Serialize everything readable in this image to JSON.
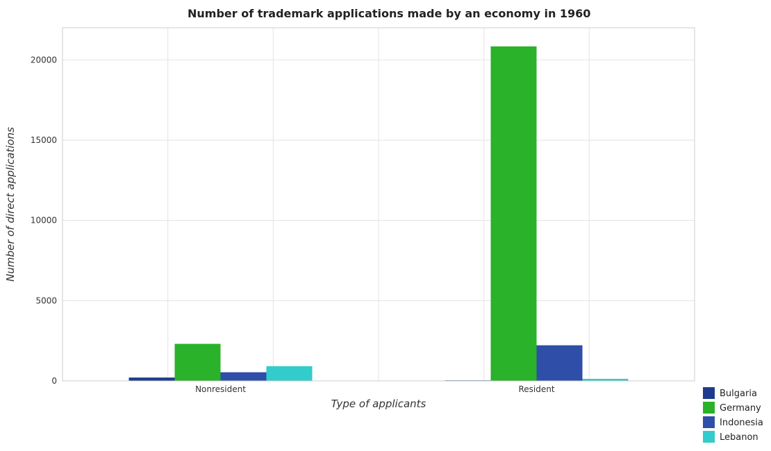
{
  "chart_data": {
    "type": "bar",
    "title": "Number of trademark applications made by an economy in 1960",
    "xlabel": "Type of applicants",
    "ylabel": "Number of direct applications",
    "categories": [
      "Nonresident",
      "Resident"
    ],
    "series": [
      {
        "name": "Bulgaria",
        "color": "#1f3c8c",
        "values": [
          210,
          35
        ]
      },
      {
        "name": "Germany",
        "color": "#2ab22a",
        "values": [
          2310,
          20840
        ]
      },
      {
        "name": "Indonesia",
        "color": "#2e4ea8",
        "values": [
          540,
          2220
        ]
      },
      {
        "name": "Lebanon",
        "color": "#33cccc",
        "values": [
          920,
          130
        ]
      }
    ],
    "ylim": [
      0,
      22000
    ],
    "yticks": [
      0,
      5000,
      10000,
      15000,
      20000
    ],
    "grid": true,
    "legend_position": "bottom-right"
  }
}
